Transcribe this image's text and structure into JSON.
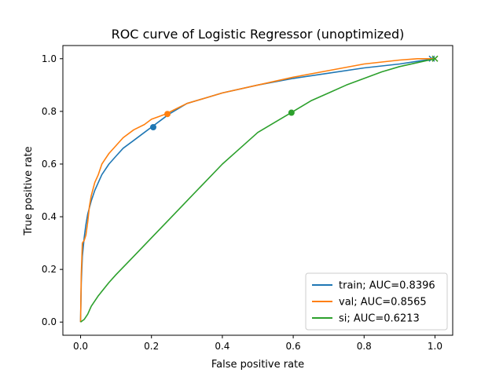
{
  "chart_data": {
    "type": "line",
    "title": "ROC curve of Logistic Regressor (unoptimized)",
    "xlabel": "False positive rate",
    "ylabel": "True positive rate",
    "xlim": [
      -0.05,
      1.05
    ],
    "ylim": [
      -0.05,
      1.05
    ],
    "xticks": [
      0.0,
      0.2,
      0.4,
      0.6,
      0.8,
      1.0
    ],
    "xtick_labels": [
      "0.0",
      "0.2",
      "0.4",
      "0.6",
      "0.8",
      "1.0"
    ],
    "yticks": [
      0.0,
      0.2,
      0.4,
      0.6,
      0.8,
      1.0
    ],
    "ytick_labels": [
      "0.0",
      "0.2",
      "0.4",
      "0.6",
      "0.8",
      "1.0"
    ],
    "grid": false,
    "legend_position": "lower-right",
    "series": [
      {
        "name": "train; AUC=0.8396",
        "color": "#1f77b4",
        "x": [
          0,
          0.002,
          0.005,
          0.01,
          0.015,
          0.02,
          0.03,
          0.04,
          0.05,
          0.06,
          0.08,
          0.1,
          0.12,
          0.15,
          0.18,
          0.2,
          0.22,
          0.25,
          0.3,
          0.35,
          0.4,
          0.5,
          0.6,
          0.7,
          0.8,
          0.9,
          0.95,
          1.0
        ],
        "y": [
          0,
          0.15,
          0.25,
          0.32,
          0.37,
          0.41,
          0.46,
          0.5,
          0.53,
          0.56,
          0.6,
          0.63,
          0.66,
          0.69,
          0.72,
          0.74,
          0.76,
          0.79,
          0.83,
          0.85,
          0.87,
          0.9,
          0.925,
          0.945,
          0.965,
          0.98,
          0.99,
          1.0
        ],
        "marker_point": [
          0.205,
          0.74
        ],
        "end_marker": [
          1.0,
          1.0
        ]
      },
      {
        "name": "val; AUC=0.8565",
        "color": "#ff7f0e",
        "x": [
          0,
          0.002,
          0.005,
          0.01,
          0.015,
          0.02,
          0.025,
          0.03,
          0.04,
          0.05,
          0.06,
          0.07,
          0.08,
          0.1,
          0.12,
          0.15,
          0.18,
          0.2,
          0.22,
          0.24,
          0.27,
          0.3,
          0.35,
          0.4,
          0.5,
          0.6,
          0.7,
          0.8,
          0.9,
          0.95,
          1.0
        ],
        "y": [
          0,
          0.18,
          0.3,
          0.31,
          0.33,
          0.38,
          0.44,
          0.48,
          0.53,
          0.56,
          0.6,
          0.62,
          0.64,
          0.67,
          0.7,
          0.73,
          0.75,
          0.77,
          0.78,
          0.79,
          0.81,
          0.83,
          0.85,
          0.87,
          0.9,
          0.93,
          0.955,
          0.98,
          0.995,
          1.0,
          1.0
        ],
        "marker_point": [
          0.245,
          0.79
        ],
        "end_marker": [
          1.0,
          1.0
        ]
      },
      {
        "name": "si; AUC=0.6213",
        "color": "#2ca02c",
        "x": [
          0,
          0.01,
          0.02,
          0.03,
          0.05,
          0.08,
          0.1,
          0.15,
          0.2,
          0.25,
          0.3,
          0.35,
          0.4,
          0.45,
          0.5,
          0.55,
          0.6,
          0.65,
          0.7,
          0.75,
          0.8,
          0.85,
          0.9,
          0.95,
          1.0
        ],
        "y": [
          0,
          0.01,
          0.03,
          0.06,
          0.1,
          0.15,
          0.18,
          0.25,
          0.32,
          0.39,
          0.46,
          0.53,
          0.6,
          0.66,
          0.72,
          0.76,
          0.8,
          0.84,
          0.87,
          0.9,
          0.925,
          0.95,
          0.97,
          0.985,
          1.0
        ],
        "marker_point": [
          0.595,
          0.795
        ],
        "end_marker": [
          1.0,
          1.0
        ]
      }
    ]
  }
}
